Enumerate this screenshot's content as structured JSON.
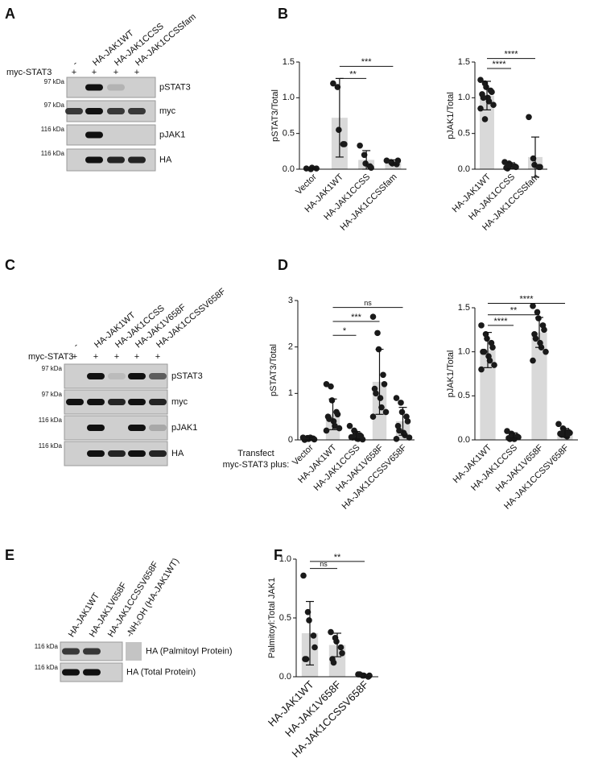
{
  "panels": [
    "A",
    "B",
    "C",
    "D",
    "E",
    "F"
  ],
  "blots": [
    {
      "lanes": [
        "-",
        "HA-JAK1WT",
        "HA-JAK1CCSS",
        "HA-JAK1CCSSfam"
      ],
      "treatment": {
        "label": "myc-STAT3",
        "marks": [
          "+",
          "+",
          "+",
          "+"
        ]
      },
      "rows": [
        {
          "marker": "97 kDa",
          "label": "pSTAT3"
        },
        {
          "marker": "97 kDa",
          "label": "myc"
        },
        {
          "marker": "116 kDa",
          "label": "pJAK1"
        },
        {
          "marker": "116 kDa",
          "label": "HA"
        }
      ]
    },
    {
      "lanes": [
        "-",
        "HA-JAK1WT",
        "HA-JAK1CCSS",
        "HA-JAK1V658F",
        "HA-JAK1CCSSV658F"
      ],
      "treatment": {
        "label": "myc-STAT3",
        "marks": [
          "+",
          "+",
          "+",
          "+",
          "+"
        ]
      },
      "rows": [
        {
          "marker": "97 kDa",
          "label": "pSTAT3"
        },
        {
          "marker": "97 kDa",
          "label": "myc"
        },
        {
          "marker": "116 kDa",
          "label": "pJAK1"
        },
        {
          "marker": "116 kDa",
          "label": "HA"
        }
      ]
    },
    {
      "lanes": [
        "HA-JAK1WT",
        "HA-JAK1V658F",
        "HA-JAK1CCSSV658F",
        "-NH₂OH (HA-JAK1WT)"
      ],
      "rows": [
        {
          "marker": "116 kDa",
          "label": "HA (Palmitoyl Protein)"
        },
        {
          "marker": "116 kDa",
          "label": "HA (Total Protein)"
        }
      ]
    }
  ],
  "chart_data": [
    {
      "type": "bar",
      "y_label": "pSTAT3/Total",
      "color": "#d9d9d9",
      "point_color": "#1a1a1a",
      "categories": [
        "Vector",
        "HA-JAK1WT",
        "HA-JAK1CCSS",
        "HA-JAK1CCSSfam"
      ],
      "values": [
        0.01,
        0.72,
        0.13,
        0.1
      ],
      "errors": [
        0.01,
        0.55,
        0.13,
        0.03
      ],
      "points": [
        [
          0.01,
          0.0,
          0.02,
          0.01
        ],
        [
          1.2,
          1.15,
          0.55,
          0.35,
          0.35
        ],
        [
          0.33,
          0.2,
          0.08,
          0.04,
          0.02
        ],
        [
          0.12,
          0.1,
          0.08,
          0.07,
          0.12
        ]
      ],
      "ylim": [
        0,
        1.5
      ],
      "yticks": [
        {
          "value": 0,
          "label": "0.0"
        },
        {
          "value": 0.5,
          "label": "0.5"
        },
        {
          "value": 1,
          "label": "1.0"
        },
        {
          "value": 1.5,
          "label": "1.5"
        }
      ],
      "significance": [
        {
          "pair": [
            1,
            2
          ],
          "y": 1.27,
          "label": "**"
        },
        {
          "pair": [
            1,
            3
          ],
          "y": 1.44,
          "label": "***"
        }
      ]
    },
    {
      "type": "bar",
      "y_label": "pJAK1/Total",
      "color": "#d9d9d9",
      "point_color": "#1a1a1a",
      "categories": [
        "HA-JAK1WT",
        "HA-JAK1CCSS",
        "HA-JAK1CCSSfam"
      ],
      "values": [
        1.03,
        0.05,
        0.17
      ],
      "errors": [
        0.2,
        0.04,
        0.28
      ],
      "points": [
        [
          1.25,
          1.2,
          1.15,
          1.1,
          1.08,
          1.05,
          1.0,
          1.0,
          0.95,
          0.9,
          0.85,
          0.7
        ],
        [
          0.1,
          0.08,
          0.06,
          0.04,
          0.03,
          0.02,
          0.01
        ],
        [
          0.73,
          0.15,
          0.06,
          0.03,
          0.03
        ]
      ],
      "ylim": [
        0,
        1.5
      ],
      "yticks": [
        {
          "value": 0,
          "label": "0.0"
        },
        {
          "value": 0.5,
          "label": "0.5"
        },
        {
          "value": 1,
          "label": "1.0"
        },
        {
          "value": 1.5,
          "label": "1.5"
        }
      ],
      "significance": [
        {
          "pair": [
            0,
            1
          ],
          "y": 1.41,
          "label": "****"
        },
        {
          "pair": [
            0,
            2
          ],
          "y": 1.55,
          "label": "****"
        }
      ]
    },
    {
      "type": "bar",
      "y_label": "pSTAT3/Total",
      "color": "#d9d9d9",
      "point_color": "#1a1a1a",
      "annotation": [
        "Transfect",
        "myc-STAT3 plus:"
      ],
      "categories": [
        "Vector",
        "HA-JAK1WT",
        "HA-JAK1CCSS",
        "HA-JAK1V658F",
        "HA-JAK1CCSSV658F"
      ],
      "values": [
        0.03,
        0.55,
        0.1,
        1.25,
        0.4
      ],
      "errors": [
        0.03,
        0.33,
        0.08,
        0.7,
        0.3
      ],
      "points": [
        [
          0.05,
          0.04,
          0.02,
          0.03,
          0.01,
          0.0,
          0.02,
          0.05
        ],
        [
          1.2,
          1.15,
          0.85,
          0.6,
          0.55,
          0.5,
          0.45,
          0.4,
          0.3,
          0.25,
          0.2
        ],
        [
          0.3,
          0.2,
          0.15,
          0.1,
          0.08,
          0.06,
          0.05,
          0.03,
          0.02,
          0.01
        ],
        [
          2.65,
          2.3,
          1.95,
          1.4,
          1.2,
          1.1,
          1.0,
          0.9,
          0.7,
          0.6,
          0.5
        ],
        [
          0.9,
          0.8,
          0.6,
          0.5,
          0.4,
          0.3,
          0.2,
          0.15,
          0.1,
          0.05,
          0.02
        ]
      ],
      "ylim": [
        0,
        3
      ],
      "yticks": [
        0,
        1,
        2,
        3
      ],
      "significance": [
        {
          "pair": [
            1,
            2
          ],
          "y": 2.25,
          "label": "*"
        },
        {
          "pair": [
            1,
            3
          ],
          "y": 2.55,
          "label": "***"
        },
        {
          "pair": [
            1,
            4
          ],
          "y": 2.85,
          "label": "ns"
        }
      ]
    },
    {
      "type": "bar",
      "y_label": "pJAK1/Total",
      "color": "#d9d9d9",
      "point_color": "#1a1a1a",
      "categories": [
        "HA-JAK1WT",
        "HA-JAK1CCSS",
        "HA-JAK1V658F",
        "HA-JAK1CCSSV658F"
      ],
      "values": [
        1.02,
        0.05,
        1.22,
        0.08
      ],
      "errors": [
        0.2,
        0.03,
        0.17,
        0.05
      ],
      "points": [
        [
          1.3,
          1.2,
          1.15,
          1.1,
          1.05,
          1.0,
          1.0,
          0.95,
          0.9,
          0.85,
          0.8
        ],
        [
          0.1,
          0.07,
          0.05,
          0.04,
          0.03,
          0.02,
          0.01,
          0.01
        ],
        [
          1.52,
          1.45,
          1.38,
          1.3,
          1.25,
          1.2,
          1.15,
          1.1,
          1.05,
          1.0,
          0.9
        ],
        [
          0.18,
          0.13,
          0.1,
          0.09,
          0.08,
          0.07,
          0.06,
          0.05,
          0.04
        ]
      ],
      "ylim": [
        0,
        1.5
      ],
      "yticks": [
        {
          "value": 0,
          "label": "0.0"
        },
        {
          "value": 0.5,
          "label": "0.5"
        },
        {
          "value": 1,
          "label": "1.0"
        },
        {
          "value": 1.5,
          "label": "1.5"
        }
      ],
      "significance": [
        {
          "pair": [
            0,
            1
          ],
          "y": 1.3,
          "label": "****"
        },
        {
          "pair": [
            0,
            2
          ],
          "y": 1.42,
          "label": "**"
        },
        {
          "pair": [
            0,
            3
          ],
          "y": 1.55,
          "label": "****"
        }
      ]
    },
    {
      "type": "bar",
      "y_label": "Palmitoyl:Total JAK1",
      "color": "#d9d9d9",
      "point_color": "#1a1a1a",
      "categories": [
        "HA-JAK1WT",
        "HA-JAK1V658F",
        "HA-JAK1CCSSV658F"
      ],
      "values": [
        0.37,
        0.27,
        0.01
      ],
      "errors": [
        0.27,
        0.1,
        0.01
      ],
      "points": [
        [
          0.86,
          0.55,
          0.48,
          0.35,
          0.25,
          0.15,
          0.15
        ],
        [
          0.38,
          0.33,
          0.3,
          0.25,
          0.2,
          0.15,
          0.12
        ],
        [
          0.02,
          0.01,
          0.01,
          0.0,
          0.01,
          0.02
        ]
      ],
      "ylim": [
        0,
        1
      ],
      "yticks": [
        {
          "value": 0,
          "label": "0.0"
        },
        {
          "value": 0.5,
          "label": "0.5"
        },
        {
          "value": 1,
          "label": "1.0"
        }
      ],
      "significance": [
        {
          "pair": [
            0,
            1
          ],
          "y": 0.92,
          "label": "ns"
        },
        {
          "pair": [
            0,
            2
          ],
          "y": 0.98,
          "label": "**"
        }
      ]
    }
  ]
}
